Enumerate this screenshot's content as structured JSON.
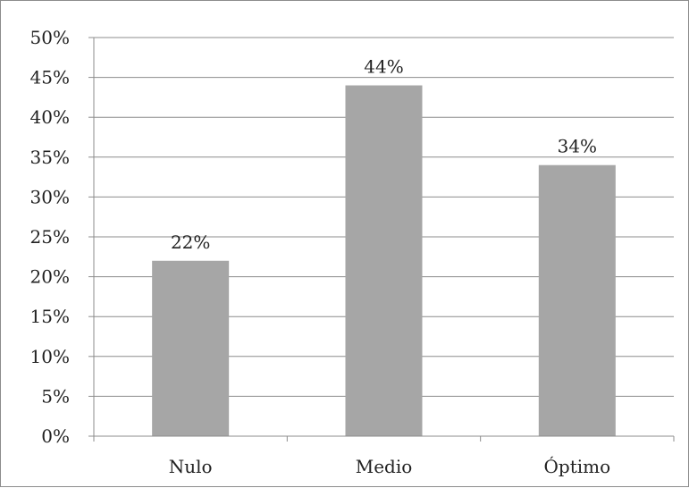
{
  "chart_data": {
    "type": "bar",
    "categories": [
      "Nulo",
      "Medio",
      "Óptimo"
    ],
    "values": [
      22,
      44,
      34
    ],
    "data_labels": [
      "22%",
      "44%",
      "34%"
    ],
    "title": "",
    "xlabel": "",
    "ylabel": "",
    "ylim": [
      0,
      50
    ],
    "y_ticks": [
      0,
      5,
      10,
      15,
      20,
      25,
      30,
      35,
      40,
      45,
      50
    ],
    "y_tick_labels": [
      "0%",
      "5%",
      "10%",
      "15%",
      "20%",
      "25%",
      "30%",
      "35%",
      "40%",
      "45%",
      "50%"
    ],
    "grid": true,
    "legend": "none",
    "colors": {
      "bar": "#a6a6a6",
      "grid": "#8c8c8c",
      "axis": "#8c8c8c",
      "text": "#222222"
    }
  }
}
